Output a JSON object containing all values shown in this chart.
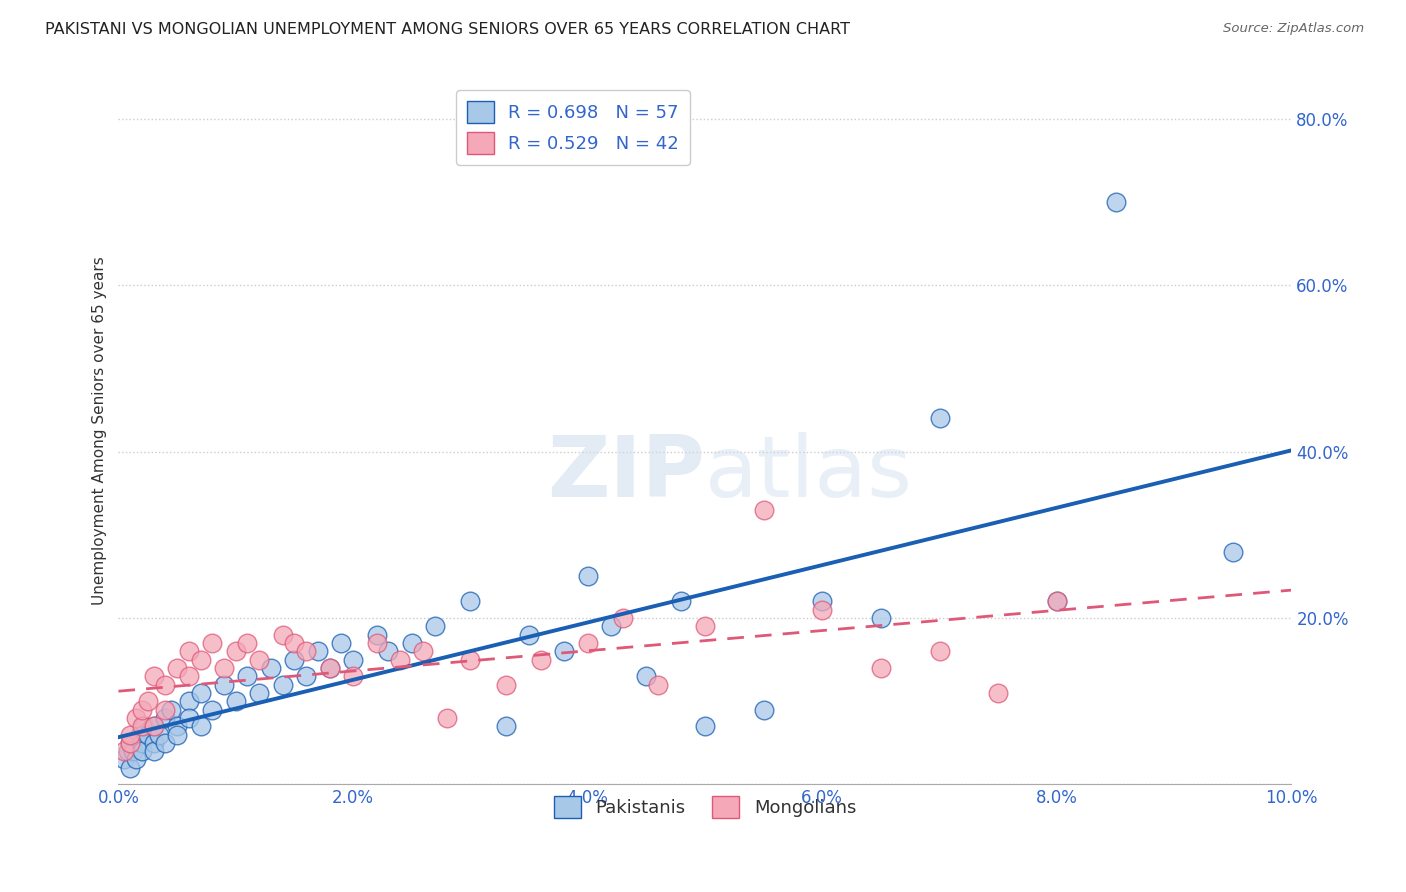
{
  "title": "PAKISTANI VS MONGOLIAN UNEMPLOYMENT AMONG SENIORS OVER 65 YEARS CORRELATION CHART",
  "source": "Source: ZipAtlas.com",
  "ylabel_label": "Unemployment Among Seniors over 65 years",
  "xlim": [
    0.0,
    0.1
  ],
  "ylim": [
    0.0,
    0.85
  ],
  "xticks": [
    0.0,
    0.02,
    0.04,
    0.06,
    0.08,
    0.1
  ],
  "yticks": [
    0.0,
    0.2,
    0.4,
    0.6,
    0.8
  ],
  "ytick_labels": [
    "",
    "20.0%",
    "40.0%",
    "60.0%",
    "80.0%"
  ],
  "xtick_labels": [
    "0.0%",
    "2.0%",
    "4.0%",
    "6.0%",
    "8.0%",
    "10.0%"
  ],
  "pakistani_color": "#a8c8e8",
  "mongolian_color": "#f4a8b8",
  "line_pakistani_color": "#1a5fb4",
  "line_mongolian_color": "#e05878",
  "background_color": "#ffffff",
  "r_pakistani": 0.698,
  "n_pakistani": 57,
  "r_mongolian": 0.529,
  "n_mongolian": 42,
  "pakistani_label": "Pakistanis",
  "mongolian_label": "Mongolians",
  "pakistani_x": [
    0.0005,
    0.0008,
    0.001,
    0.001,
    0.0012,
    0.0015,
    0.0018,
    0.002,
    0.002,
    0.0022,
    0.0025,
    0.003,
    0.003,
    0.003,
    0.0035,
    0.004,
    0.004,
    0.0045,
    0.005,
    0.005,
    0.006,
    0.006,
    0.007,
    0.007,
    0.008,
    0.009,
    0.01,
    0.011,
    0.012,
    0.013,
    0.014,
    0.015,
    0.016,
    0.017,
    0.018,
    0.019,
    0.02,
    0.022,
    0.023,
    0.025,
    0.027,
    0.03,
    0.033,
    0.035,
    0.038,
    0.04,
    0.042,
    0.045,
    0.048,
    0.05,
    0.055,
    0.06,
    0.065,
    0.07,
    0.08,
    0.085,
    0.095
  ],
  "pakistani_y": [
    0.03,
    0.04,
    0.02,
    0.05,
    0.04,
    0.03,
    0.06,
    0.05,
    0.04,
    0.07,
    0.06,
    0.05,
    0.07,
    0.04,
    0.06,
    0.08,
    0.05,
    0.09,
    0.07,
    0.06,
    0.1,
    0.08,
    0.11,
    0.07,
    0.09,
    0.12,
    0.1,
    0.13,
    0.11,
    0.14,
    0.12,
    0.15,
    0.13,
    0.16,
    0.14,
    0.17,
    0.15,
    0.18,
    0.16,
    0.17,
    0.19,
    0.22,
    0.07,
    0.18,
    0.16,
    0.25,
    0.19,
    0.13,
    0.22,
    0.07,
    0.09,
    0.22,
    0.2,
    0.44,
    0.22,
    0.7,
    0.28
  ],
  "mongolian_x": [
    0.0005,
    0.001,
    0.001,
    0.0015,
    0.002,
    0.002,
    0.0025,
    0.003,
    0.003,
    0.004,
    0.004,
    0.005,
    0.006,
    0.006,
    0.007,
    0.008,
    0.009,
    0.01,
    0.011,
    0.012,
    0.014,
    0.015,
    0.016,
    0.018,
    0.02,
    0.022,
    0.024,
    0.026,
    0.028,
    0.03,
    0.033,
    0.036,
    0.04,
    0.043,
    0.046,
    0.05,
    0.055,
    0.06,
    0.065,
    0.07,
    0.075,
    0.08
  ],
  "mongolian_y": [
    0.04,
    0.05,
    0.06,
    0.08,
    0.07,
    0.09,
    0.1,
    0.07,
    0.13,
    0.09,
    0.12,
    0.14,
    0.13,
    0.16,
    0.15,
    0.17,
    0.14,
    0.16,
    0.17,
    0.15,
    0.18,
    0.17,
    0.16,
    0.14,
    0.13,
    0.17,
    0.15,
    0.16,
    0.08,
    0.15,
    0.12,
    0.15,
    0.17,
    0.2,
    0.12,
    0.19,
    0.33,
    0.21,
    0.14,
    0.16,
    0.11,
    0.22
  ]
}
